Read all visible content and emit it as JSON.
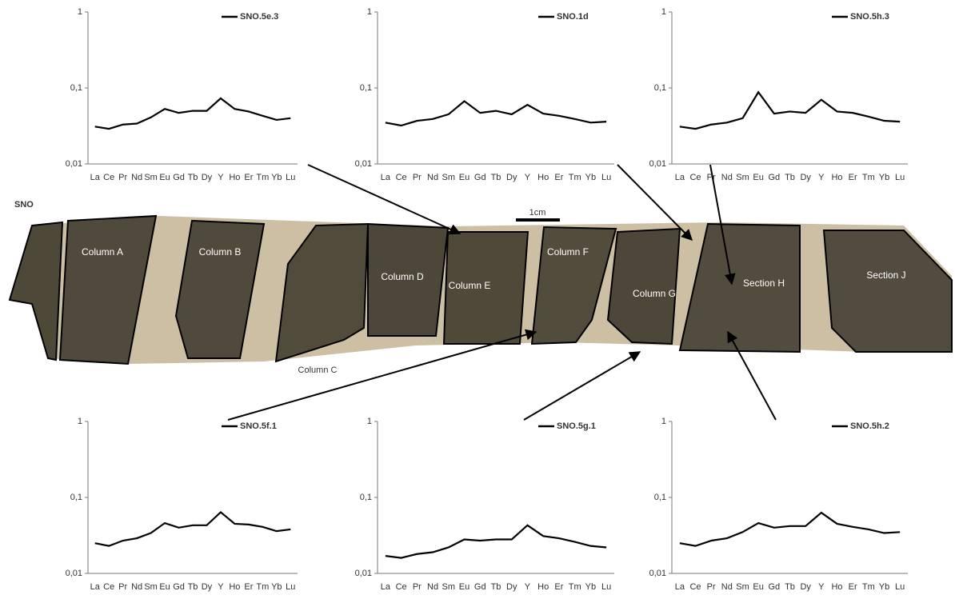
{
  "chart_data": [
    {
      "type": "line",
      "log_scale_y": true,
      "grid": false,
      "legend": "upper right",
      "categories": [
        "La",
        "Ce",
        "Pr",
        "Nd",
        "Sm",
        "Eu",
        "Gd",
        "Tb",
        "Dy",
        "Y",
        "Ho",
        "Er",
        "Tm",
        "Yb",
        "Lu"
      ],
      "series": [
        {
          "name": "SNO.5e.3",
          "color": "#000000",
          "values": [
            0.031,
            0.029,
            0.033,
            0.034,
            0.041,
            0.053,
            0.047,
            0.05,
            0.05,
            0.073,
            0.053,
            0.049,
            0.043,
            0.038,
            0.04
          ]
        }
      ],
      "ylim": [
        0.01,
        1
      ],
      "yticks": [
        {
          "value": 0.01,
          "label": "0,01"
        },
        {
          "value": 0.1,
          "label": "0,1"
        },
        1
      ]
    },
    {
      "type": "line",
      "log_scale_y": true,
      "grid": false,
      "legend": "upper right",
      "categories": [
        "La",
        "Ce",
        "Pr",
        "Nd",
        "Sm",
        "Eu",
        "Gd",
        "Tb",
        "Dy",
        "Y",
        "Ho",
        "Er",
        "Tm",
        "Yb",
        "Lu"
      ],
      "series": [
        {
          "name": "SNO.1d",
          "color": "#000000",
          "values": [
            0.035,
            0.032,
            0.037,
            0.039,
            0.045,
            0.067,
            0.047,
            0.05,
            0.045,
            0.06,
            0.046,
            0.043,
            0.039,
            0.035,
            0.036
          ]
        }
      ],
      "ylim": [
        0.01,
        1
      ],
      "yticks": [
        {
          "value": 0.01,
          "label": "0,01"
        },
        {
          "value": 0.1,
          "label": "0,1"
        },
        1
      ]
    },
    {
      "type": "line",
      "log_scale_y": true,
      "grid": false,
      "legend": "upper right",
      "categories": [
        "La",
        "Ce",
        "Pr",
        "Nd",
        "Sm",
        "Eu",
        "Gd",
        "Tb",
        "Dy",
        "Y",
        "Ho",
        "Er",
        "Tm",
        "Yb",
        "Lu"
      ],
      "series": [
        {
          "name": "SNO.5h.3",
          "color": "#000000",
          "values": [
            0.031,
            0.029,
            0.033,
            0.035,
            0.04,
            0.088,
            0.046,
            0.049,
            0.047,
            0.07,
            0.049,
            0.047,
            0.042,
            0.037,
            0.036
          ]
        }
      ],
      "ylim": [
        0.01,
        1
      ],
      "yticks": [
        {
          "value": 0.01,
          "label": "0,01"
        },
        {
          "value": 0.1,
          "label": "0,1"
        },
        1
      ]
    },
    {
      "type": "line",
      "log_scale_y": true,
      "grid": false,
      "legend": "upper right",
      "categories": [
        "La",
        "Ce",
        "Pr",
        "Nd",
        "Sm",
        "Eu",
        "Gd",
        "Tb",
        "Dy",
        "Y",
        "Ho",
        "Er",
        "Tm",
        "Yb",
        "Lu"
      ],
      "series": [
        {
          "name": "SNO.5f.1",
          "color": "#000000",
          "values": [
            0.025,
            0.023,
            0.027,
            0.029,
            0.034,
            0.046,
            0.04,
            0.043,
            0.043,
            0.064,
            0.045,
            0.044,
            0.041,
            0.036,
            0.038
          ]
        }
      ],
      "ylim": [
        0.01,
        1
      ],
      "yticks": [
        {
          "value": 0.01,
          "label": "0,01"
        },
        {
          "value": 0.1,
          "label": "0,1"
        },
        1
      ]
    },
    {
      "type": "line",
      "log_scale_y": true,
      "grid": false,
      "legend": "upper right",
      "categories": [
        "La",
        "Ce",
        "Pr",
        "Nd",
        "Sm",
        "Eu",
        "Gd",
        "Tb",
        "Dy",
        "Y",
        "Ho",
        "Er",
        "Tm",
        "Yb",
        "Lu"
      ],
      "series": [
        {
          "name": "SNO.5g.1",
          "color": "#000000",
          "values": [
            0.017,
            0.016,
            0.018,
            0.019,
            0.022,
            0.028,
            0.027,
            0.028,
            0.028,
            0.043,
            0.031,
            0.029,
            0.026,
            0.023,
            0.022
          ]
        }
      ],
      "ylim": [
        0.01,
        1
      ],
      "yticks": [
        {
          "value": 0.01,
          "label": "0,01"
        },
        {
          "value": 0.1,
          "label": "0,1"
        },
        1
      ]
    },
    {
      "type": "line",
      "log_scale_y": true,
      "grid": false,
      "legend": "upper right",
      "categories": [
        "La",
        "Ce",
        "Pr",
        "Nd",
        "Sm",
        "Eu",
        "Gd",
        "Tb",
        "Dy",
        "Y",
        "Ho",
        "Er",
        "Tm",
        "Yb",
        "Lu"
      ],
      "series": [
        {
          "name": "SNO.5h.2",
          "color": "#000000",
          "values": [
            0.025,
            0.023,
            0.027,
            0.029,
            0.035,
            0.046,
            0.04,
            0.042,
            0.042,
            0.063,
            0.045,
            0.041,
            0.038,
            0.034,
            0.035
          ]
        }
      ],
      "ylim": [
        0.01,
        1
      ],
      "yticks": [
        {
          "value": 0.01,
          "label": "0,01"
        },
        {
          "value": 0.1,
          "label": "0,1"
        },
        1
      ]
    }
  ],
  "figure": {
    "label": "SNO",
    "scale_bar": "1cm",
    "regions": [
      "Column A",
      "Column B",
      "Column C",
      "Column D",
      "Column E",
      "Column F",
      "Column G",
      "Section H",
      "Section J"
    ]
  }
}
